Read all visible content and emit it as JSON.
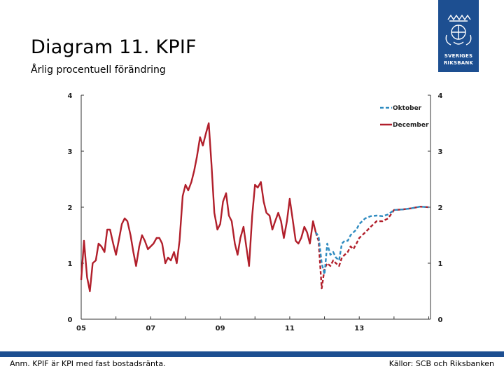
{
  "header": {
    "title": "Diagram 11. KPIF",
    "subtitle": "Årlig procentuell förändring"
  },
  "logo": {
    "line1": "SVERIGES",
    "line2": "RIKSBANK",
    "color": "#1d4f91"
  },
  "footer": {
    "note": "Anm. KPIF är KPI med fast bostadsränta.",
    "source": "Källor: SCB och Riksbanken",
    "bar_color": "#1d4f91"
  },
  "chart_data": {
    "type": "line",
    "title": "",
    "xlabel": "",
    "ylabel": "",
    "xlim": [
      2005,
      2015.05
    ],
    "ylim": [
      0,
      4
    ],
    "x_tick_labels": [
      "05",
      "07",
      "09",
      "11",
      "13"
    ],
    "x_tick_values": [
      2005,
      2007,
      2009,
      2011,
      2013
    ],
    "y_tick_labels": [
      "0",
      "1",
      "2",
      "3",
      "4"
    ],
    "y_tick_values": [
      0,
      1,
      2,
      3,
      4
    ],
    "dual_y_axis": true,
    "grid": false,
    "legend_placement": "top-right",
    "series": [
      {
        "name": "Oktober",
        "color": "#2e8bc0",
        "style": "dashed",
        "x": [
          2011.75,
          2011.83,
          2011.92,
          2012.0,
          2012.08,
          2012.17,
          2012.25,
          2012.33,
          2012.42,
          2012.5,
          2012.58,
          2012.67,
          2012.75,
          2012.83,
          2012.92,
          2013.0,
          2013.17,
          2013.33,
          2013.5,
          2013.67,
          2013.83,
          2014.0,
          2014.25,
          2014.5,
          2014.75,
          2015.0
        ],
        "y": [
          1.55,
          1.48,
          1.0,
          0.8,
          1.35,
          1.15,
          1.2,
          1.1,
          1.05,
          1.35,
          1.4,
          1.4,
          1.5,
          1.55,
          1.6,
          1.7,
          1.8,
          1.84,
          1.85,
          1.84,
          1.87,
          1.95,
          1.96,
          1.98,
          2.01,
          2.0
        ]
      },
      {
        "name": "December",
        "color": "#b11f2b",
        "style": "solid",
        "x": [
          2005.0,
          2005.08,
          2005.17,
          2005.25,
          2005.33,
          2005.42,
          2005.5,
          2005.58,
          2005.67,
          2005.75,
          2005.83,
          2005.92,
          2006.0,
          2006.08,
          2006.17,
          2006.25,
          2006.33,
          2006.42,
          2006.5,
          2006.58,
          2006.67,
          2006.75,
          2006.83,
          2006.92,
          2007.0,
          2007.08,
          2007.17,
          2007.25,
          2007.33,
          2007.42,
          2007.5,
          2007.58,
          2007.67,
          2007.75,
          2007.83,
          2007.92,
          2008.0,
          2008.08,
          2008.17,
          2008.25,
          2008.33,
          2008.42,
          2008.5,
          2008.58,
          2008.67,
          2008.75,
          2008.83,
          2008.92,
          2009.0,
          2009.08,
          2009.17,
          2009.25,
          2009.33,
          2009.42,
          2009.5,
          2009.58,
          2009.67,
          2009.75,
          2009.83,
          2009.92,
          2010.0,
          2010.08,
          2010.17,
          2010.25,
          2010.33,
          2010.42,
          2010.5,
          2010.58,
          2010.67,
          2010.75,
          2010.83,
          2010.92,
          2011.0,
          2011.08,
          2011.17,
          2011.25,
          2011.33,
          2011.42,
          2011.5,
          2011.58,
          2011.67,
          2011.75
        ],
        "y": [
          0.7,
          1.4,
          0.75,
          0.5,
          1.0,
          1.05,
          1.35,
          1.3,
          1.2,
          1.6,
          1.6,
          1.35,
          1.15,
          1.4,
          1.7,
          1.8,
          1.75,
          1.5,
          1.2,
          0.95,
          1.3,
          1.5,
          1.4,
          1.25,
          1.3,
          1.35,
          1.45,
          1.45,
          1.35,
          1.0,
          1.1,
          1.05,
          1.2,
          1.0,
          1.4,
          2.2,
          2.4,
          2.3,
          2.45,
          2.65,
          2.9,
          3.25,
          3.1,
          3.3,
          3.5,
          2.75,
          1.9,
          1.6,
          1.7,
          2.1,
          2.25,
          1.85,
          1.75,
          1.35,
          1.15,
          1.45,
          1.65,
          1.3,
          0.95,
          1.85,
          2.4,
          2.35,
          2.45,
          2.1,
          1.9,
          1.85,
          1.6,
          1.75,
          1.9,
          1.75,
          1.45,
          1.75,
          2.15,
          1.8,
          1.4,
          1.35,
          1.45,
          1.65,
          1.55,
          1.35,
          1.75,
          1.55
        ]
      },
      {
        "name": "",
        "color": "#b11f2b",
        "style": "dashed",
        "x": [
          2011.75,
          2011.83,
          2011.92,
          2012.0,
          2012.08,
          2012.17,
          2012.25,
          2012.33,
          2012.42,
          2012.5,
          2012.58,
          2012.67,
          2012.75,
          2012.83,
          2012.92,
          2013.0,
          2013.17,
          2013.33,
          2013.5,
          2013.67,
          2013.83,
          2014.0,
          2014.25,
          2014.5,
          2014.75,
          2015.0
        ],
        "y": [
          1.55,
          1.4,
          0.55,
          0.9,
          1.0,
          0.95,
          1.05,
          1.0,
          0.95,
          1.1,
          1.15,
          1.2,
          1.3,
          1.25,
          1.35,
          1.45,
          1.55,
          1.65,
          1.75,
          1.75,
          1.8,
          1.95,
          1.96,
          1.98,
          2.01,
          2.0
        ]
      }
    ]
  }
}
